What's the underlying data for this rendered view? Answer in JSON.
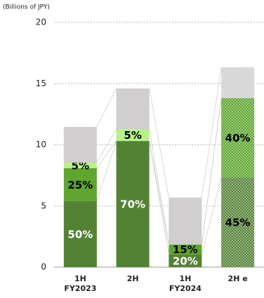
{
  "chart_data": {
    "type": "stacked_bar",
    "y_label": "(Billions of JPY)",
    "categories": [
      [
        "1H",
        "FY2023"
      ],
      [
        "2H"
      ],
      [
        "1H",
        "FY2024"
      ],
      [
        "2H e"
      ]
    ],
    "dotted": [
      false,
      false,
      false,
      true
    ],
    "series": [
      {
        "color": "#548235",
        "values": [
          5.39,
          10.31,
          1.05,
          7.33
        ],
        "labels": [
          "50%",
          "70%",
          "20%",
          "45%"
        ],
        "label_colors": [
          "#ffffff",
          "#ffffff",
          "#ffffff",
          "#000000"
        ]
      },
      {
        "color": "#5fa52e",
        "values": [
          2.69,
          0,
          0.8,
          6.48
        ],
        "labels": [
          "25%",
          null,
          "15%",
          "40%"
        ],
        "label_colors": [
          "#000000",
          null,
          "#000000",
          "#000000"
        ]
      },
      {
        "color": "#b6f28a",
        "values": [
          0.46,
          0.97,
          0,
          0
        ],
        "labels": [
          "5%",
          "5%",
          null,
          null
        ],
        "label_colors": [
          "#000000",
          "#000000",
          null,
          null
        ]
      },
      {
        "color": "#d0cece",
        "values": [
          2.92,
          3.32,
          3.84,
          2.52
        ],
        "labels": [
          null,
          null,
          null,
          null
        ],
        "label_colors": [
          null,
          null,
          null,
          null
        ]
      }
    ],
    "ylim": [
      0,
      20
    ],
    "yticks": [
      0,
      5,
      10,
      15,
      20
    ],
    "grid": true
  }
}
